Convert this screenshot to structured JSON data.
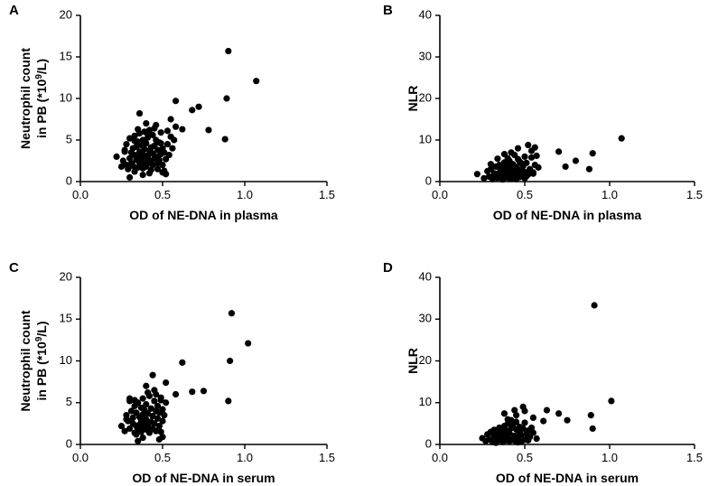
{
  "chart_data": [
    {
      "panel": "A",
      "type": "scatter",
      "xlabel": "OD of NE-DNA in plasma",
      "ylabel_line1": "Neutrophil count",
      "ylabel_line2_base": "in PB (*10",
      "ylabel_line2_sup": "9",
      "ylabel_line2_end": "/L)",
      "xlim": [
        0,
        1.5
      ],
      "ylim": [
        0,
        20
      ],
      "xticks": [
        "0.0",
        "0.5",
        "1.0",
        "1.5"
      ],
      "yticks": [
        "0",
        "5",
        "10",
        "15",
        "20"
      ],
      "x": [
        0.22,
        0.25,
        0.26,
        0.27,
        0.28,
        0.28,
        0.29,
        0.3,
        0.3,
        0.31,
        0.31,
        0.32,
        0.32,
        0.33,
        0.33,
        0.34,
        0.34,
        0.35,
        0.35,
        0.35,
        0.36,
        0.36,
        0.36,
        0.37,
        0.37,
        0.37,
        0.38,
        0.38,
        0.38,
        0.39,
        0.39,
        0.39,
        0.4,
        0.4,
        0.4,
        0.41,
        0.41,
        0.41,
        0.42,
        0.42,
        0.43,
        0.43,
        0.43,
        0.44,
        0.44,
        0.45,
        0.45,
        0.45,
        0.46,
        0.46,
        0.47,
        0.47,
        0.48,
        0.48,
        0.49,
        0.49,
        0.5,
        0.5,
        0.51,
        0.52,
        0.53,
        0.53,
        0.54,
        0.55,
        0.56,
        0.57,
        0.58,
        0.3,
        0.33,
        0.38,
        0.42,
        0.44,
        0.47,
        0.5,
        0.52,
        0.55,
        0.36,
        0.4,
        0.46,
        0.62,
        0.68,
        0.72,
        0.78,
        0.88,
        0.89,
        0.9,
        1.07,
        0.33,
        0.41,
        0.49,
        0.27,
        0.35,
        0.43,
        0.51,
        0.58
      ],
      "y": [
        3.0,
        1.8,
        2.5,
        3.8,
        2.0,
        4.5,
        1.5,
        2.8,
        5.2,
        3.5,
        2.2,
        4.0,
        1.9,
        3.2,
        5.5,
        2.6,
        4.2,
        1.7,
        3.0,
        4.8,
        2.3,
        3.6,
        5.8,
        2.0,
        2.9,
        4.4,
        1.6,
        3.3,
        5.0,
        2.4,
        3.9,
        6.0,
        1.8,
        2.7,
        4.6,
        3.1,
        5.3,
        2.2,
        3.7,
        6.2,
        2.5,
        4.1,
        1.4,
        3.4,
        5.6,
        2.8,
        4.3,
        6.4,
        3.0,
        5.0,
        2.2,
        3.8,
        2.6,
        4.7,
        3.3,
        5.9,
        2.0,
        4.0,
        3.5,
        2.7,
        4.5,
        6.1,
        3.2,
        5.4,
        4.0,
        5.0,
        6.6,
        0.5,
        1.2,
        0.8,
        1.0,
        2.0,
        1.5,
        1.1,
        0.9,
        7.5,
        8.2,
        7.0,
        6.8,
        6.3,
        8.6,
        9.0,
        6.2,
        5.1,
        10.0,
        15.7,
        12.1,
        4.9,
        5.7,
        4.6,
        3.6,
        6.3,
        2.4,
        1.3,
        9.7
      ]
    },
    {
      "panel": "B",
      "type": "scatter",
      "xlabel": "OD of NE-DNA in plasma",
      "ylabel": "NLR",
      "xlim": [
        0,
        1.5
      ],
      "ylim": [
        0,
        40
      ],
      "xticks": [
        "0.0",
        "0.5",
        "1.0",
        "1.5"
      ],
      "yticks": [
        "0",
        "10",
        "20",
        "30",
        "40"
      ],
      "x": [
        0.22,
        0.26,
        0.28,
        0.29,
        0.3,
        0.31,
        0.32,
        0.33,
        0.33,
        0.34,
        0.35,
        0.35,
        0.36,
        0.36,
        0.37,
        0.37,
        0.38,
        0.38,
        0.39,
        0.39,
        0.4,
        0.4,
        0.41,
        0.41,
        0.42,
        0.42,
        0.43,
        0.43,
        0.44,
        0.44,
        0.45,
        0.45,
        0.46,
        0.46,
        0.47,
        0.47,
        0.48,
        0.48,
        0.49,
        0.5,
        0.5,
        0.51,
        0.52,
        0.53,
        0.54,
        0.55,
        0.56,
        0.57,
        0.58,
        0.3,
        0.34,
        0.38,
        0.42,
        0.46,
        0.5,
        0.54,
        0.36,
        0.44,
        0.52,
        0.4,
        0.48,
        0.56,
        0.7,
        0.74,
        0.8,
        0.88,
        0.9,
        1.07,
        0.32,
        0.37,
        0.43,
        0.49,
        0.55,
        0.39,
        0.45,
        0.51
      ],
      "y": [
        1.8,
        0.8,
        2.5,
        1.2,
        3.0,
        0.6,
        2.0,
        1.5,
        3.6,
        0.9,
        2.2,
        4.0,
        1.3,
        2.8,
        0.7,
        3.3,
        1.9,
        4.6,
        1.0,
        2.6,
        3.8,
        1.6,
        0.8,
        5.0,
        2.1,
        3.2,
        1.4,
        4.2,
        2.7,
        0.9,
        3.5,
        1.8,
        5.4,
        2.4,
        1.1,
        4.8,
        2.9,
        1.6,
        3.7,
        0.8,
        2.3,
        4.5,
        1.7,
        3.0,
        5.8,
        2.2,
        4.0,
        6.2,
        3.4,
        4.2,
        5.5,
        6.6,
        7.0,
        8.0,
        6.0,
        7.4,
        3.0,
        6.4,
        8.8,
        5.6,
        4.4,
        8.2,
        7.2,
        3.6,
        5.0,
        3.0,
        6.8,
        10.4,
        1.0,
        0.5,
        0.7,
        1.2,
        1.9,
        2.0,
        0.6,
        1.3
      ]
    },
    {
      "panel": "C",
      "type": "scatter",
      "xlabel": "OD of NE-DNA in serum",
      "ylabel_line1": "Neutrophil count",
      "ylabel_line2_base": "in PB (*10",
      "ylabel_line2_sup": "9",
      "ylabel_line2_end": "/L)",
      "xlim": [
        0,
        1.5
      ],
      "ylim": [
        0,
        20
      ],
      "xticks": [
        "0.0",
        "0.5",
        "1.0",
        "1.5"
      ],
      "yticks": [
        "0",
        "5",
        "10",
        "15",
        "20"
      ],
      "x": [
        0.25,
        0.27,
        0.28,
        0.29,
        0.3,
        0.3,
        0.31,
        0.32,
        0.32,
        0.33,
        0.33,
        0.34,
        0.34,
        0.35,
        0.35,
        0.36,
        0.36,
        0.37,
        0.37,
        0.37,
        0.38,
        0.38,
        0.38,
        0.39,
        0.39,
        0.4,
        0.4,
        0.4,
        0.41,
        0.41,
        0.42,
        0.42,
        0.43,
        0.43,
        0.44,
        0.44,
        0.45,
        0.45,
        0.46,
        0.46,
        0.47,
        0.47,
        0.48,
        0.48,
        0.49,
        0.49,
        0.5,
        0.5,
        0.51,
        0.52,
        0.3,
        0.34,
        0.38,
        0.42,
        0.46,
        0.5,
        0.33,
        0.41,
        0.49,
        0.36,
        0.44,
        0.52,
        0.58,
        0.62,
        0.68,
        0.75,
        0.9,
        0.91,
        0.92,
        1.02,
        0.4,
        0.45,
        0.48,
        0.35,
        0.28
      ],
      "y": [
        2.2,
        1.6,
        3.5,
        2.8,
        5.2,
        1.9,
        4.0,
        2.5,
        3.2,
        1.4,
        4.6,
        2.2,
        3.8,
        1.7,
        5.0,
        2.4,
        3.3,
        1.5,
        2.9,
        4.4,
        2.0,
        3.6,
        5.5,
        2.6,
        4.1,
        1.8,
        3.0,
        4.8,
        2.3,
        3.7,
        1.6,
        5.8,
        2.7,
        4.3,
        1.9,
        3.4,
        5.2,
        2.5,
        4.0,
        6.0,
        3.1,
        4.6,
        2.2,
        3.8,
        1.5,
        5.3,
        2.8,
        4.2,
        3.5,
        5.0,
        5.5,
        1.2,
        0.8,
        1.4,
        1.6,
        0.9,
        5.3,
        6.2,
        5.6,
        2.1,
        8.3,
        7.4,
        6.0,
        9.8,
        6.3,
        6.4,
        5.2,
        10.0,
        15.7,
        12.1,
        7.0,
        6.5,
        0.6,
        0.4,
        3.0
      ]
    },
    {
      "panel": "D",
      "type": "scatter",
      "xlabel": "OD of NE-DNA in serum",
      "ylabel": "NLR",
      "xlim": [
        0,
        1.5
      ],
      "ylim": [
        0,
        40
      ],
      "xticks": [
        "0.0",
        "0.5",
        "1.0",
        "1.5"
      ],
      "yticks": [
        "0",
        "10",
        "20",
        "30",
        "40"
      ],
      "x": [
        0.25,
        0.27,
        0.28,
        0.29,
        0.3,
        0.31,
        0.32,
        0.32,
        0.33,
        0.34,
        0.34,
        0.35,
        0.36,
        0.36,
        0.37,
        0.38,
        0.38,
        0.39,
        0.39,
        0.4,
        0.4,
        0.41,
        0.41,
        0.42,
        0.43,
        0.43,
        0.44,
        0.44,
        0.45,
        0.45,
        0.46,
        0.47,
        0.47,
        0.48,
        0.48,
        0.49,
        0.5,
        0.5,
        0.51,
        0.52,
        0.53,
        0.54,
        0.55,
        0.57,
        0.3,
        0.35,
        0.4,
        0.45,
        0.5,
        0.55,
        0.38,
        0.44,
        0.42,
        0.49,
        0.61,
        0.63,
        0.7,
        0.75,
        0.89,
        0.9,
        0.91,
        1.01,
        0.33,
        0.37,
        0.46,
        0.52
      ],
      "y": [
        1.5,
        0.8,
        2.4,
        1.2,
        3.0,
        0.6,
        2.0,
        3.5,
        1.4,
        0.9,
        2.6,
        4.0,
        1.7,
        3.1,
        0.7,
        2.2,
        4.4,
        1.0,
        3.3,
        1.8,
        5.0,
        0.8,
        2.7,
        3.9,
        1.3,
        4.7,
        2.1,
        0.9,
        3.6,
        5.4,
        1.5,
        2.9,
        4.2,
        0.7,
        2.3,
        3.8,
        1.1,
        5.2,
        2.5,
        3.3,
        1.8,
        4.0,
        2.8,
        1.4,
        2.8,
        3.6,
        6.0,
        7.0,
        8.0,
        6.4,
        7.4,
        8.2,
        5.8,
        9.0,
        5.6,
        8.2,
        7.4,
        5.8,
        7.0,
        3.8,
        33.3,
        10.4,
        0.4,
        0.6,
        0.5,
        1.0
      ]
    }
  ]
}
